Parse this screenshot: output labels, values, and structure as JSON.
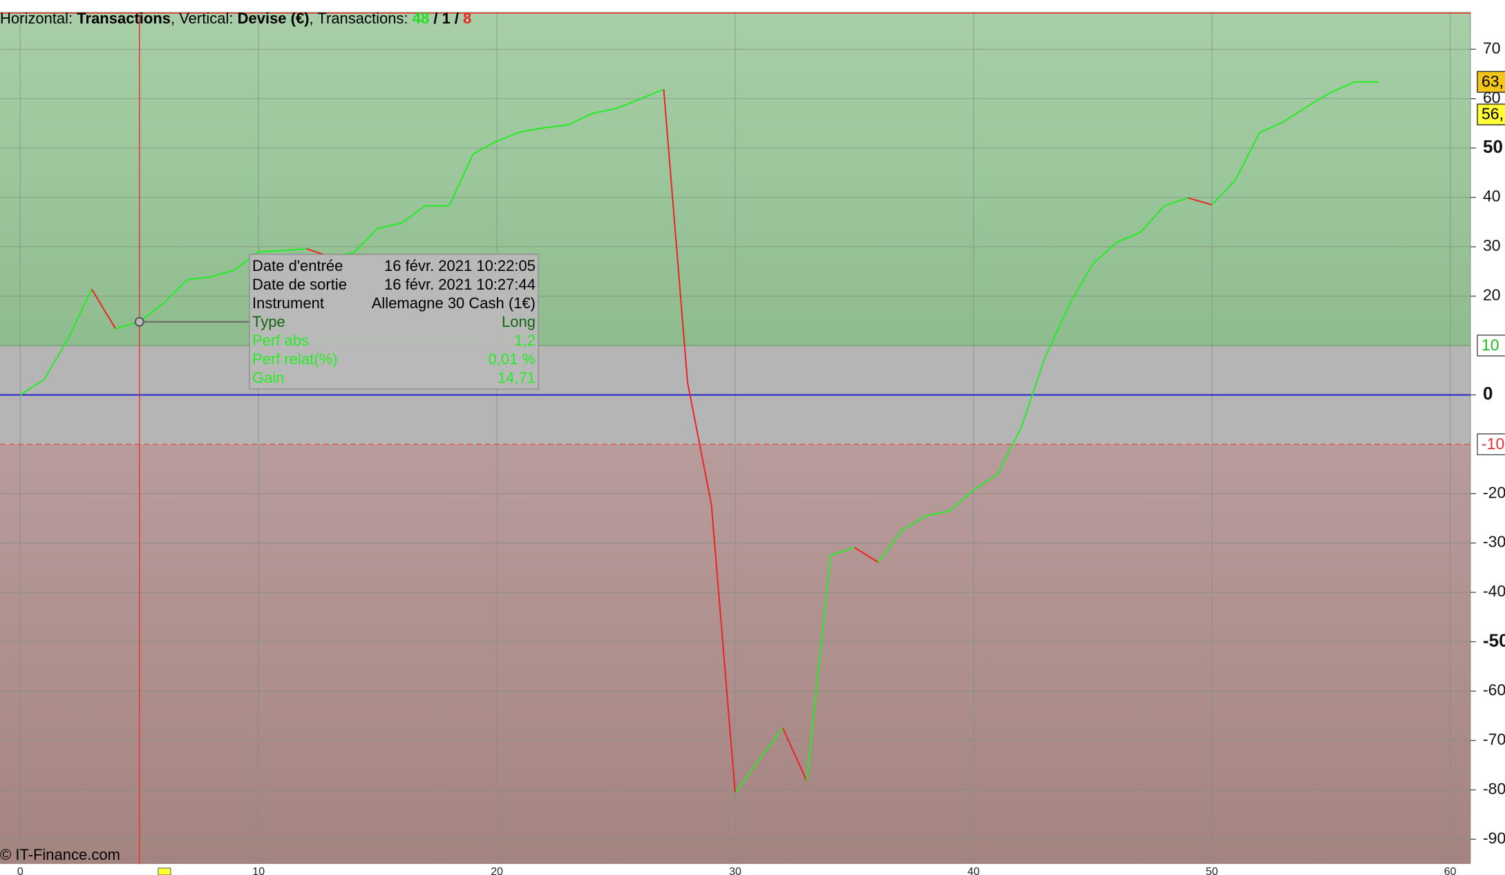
{
  "chart_data": {
    "type": "line",
    "header": [
      {
        "text": "Horizontal: "
      },
      {
        "text": "Transactions",
        "bold": true
      },
      {
        "text": ", Vertical: "
      },
      {
        "text": "Devise (€)",
        "bold": true
      },
      {
        "text": ", Transactions: "
      },
      {
        "value": 48,
        "bold": true,
        "color": "#22dd22"
      },
      {
        "text": " / ",
        "bold": true
      },
      {
        "value": 1,
        "bold": true
      },
      {
        "text": " / ",
        "bold": true
      },
      {
        "value": 8,
        "bold": true,
        "color": "#ee2222"
      }
    ],
    "x": [
      0,
      1,
      2,
      3,
      4,
      5,
      6,
      7,
      8,
      9,
      10,
      11,
      12,
      13,
      14,
      15,
      16,
      17,
      18,
      19,
      20,
      21,
      22,
      23,
      24,
      25,
      26,
      27,
      28,
      29,
      30,
      31,
      32,
      33,
      34,
      35,
      36,
      37,
      38,
      39,
      40,
      41,
      42,
      43,
      44,
      45,
      46,
      47,
      48,
      49,
      50,
      51,
      52,
      53,
      54,
      55,
      56,
      57
    ],
    "series": [
      {
        "name": "Gain",
        "up_color": "#22ee22",
        "down_color": "#ee2222",
        "values": [
          0,
          3.1,
          11.3,
          21.4,
          13.4,
          14.8,
          18.5,
          23.3,
          23.9,
          25.3,
          29.0,
          29.2,
          29.6,
          28.0,
          28.8,
          33.7,
          34.8,
          38.3,
          38.3,
          48.8,
          51.4,
          53.3,
          54.1,
          54.7,
          57.0,
          58.0,
          59.9,
          61.9,
          2.5,
          -22.2,
          -80.7,
          -73.9,
          -67.5,
          -78.2,
          -32.5,
          -30.9,
          -33.9,
          -27.4,
          -24.5,
          -23.5,
          -19.3,
          -16.1,
          -6.6,
          7.6,
          18.1,
          26.5,
          30.9,
          32.9,
          38.3,
          39.9,
          38.5,
          43.6,
          53.1,
          55.3,
          58.4,
          61.3,
          63.4,
          63.4
        ]
      }
    ],
    "xlim": [
      -0.85,
      60.85
    ],
    "ylim": [
      -95,
      77.6
    ],
    "xticks": [
      0,
      10,
      20,
      30,
      40,
      50,
      60
    ],
    "yticks": [
      70,
      60,
      50,
      40,
      30,
      20,
      0,
      -20,
      -30,
      -40,
      -50,
      -60,
      -70,
      -80,
      -90
    ],
    "grid": true,
    "zero_line_color": "#2222cc",
    "take_profit": {
      "value": 10,
      "label": "10",
      "color": "#22bb22"
    },
    "stop_loss": {
      "value": -10,
      "label": "-10",
      "color": "#dd3333"
    },
    "levels": [
      {
        "value": 63.4,
        "label": "63,",
        "color": "#f5c518"
      },
      {
        "value": 56.8,
        "label": "56,",
        "color": "#ffff33"
      }
    ],
    "selected_index": 5,
    "tooltip": [
      {
        "label": "Date d'entrée",
        "value": "16 févr. 2021 10:22:05",
        "color": "#000000"
      },
      {
        "label": "Date de sortie",
        "value": "16 févr. 2021 10:27:44",
        "color": "#000000"
      },
      {
        "label": "Instrument",
        "value": "Allemagne 30 Cash (1€)",
        "color": "#000000"
      },
      {
        "label": "Type",
        "value": "Long",
        "color": "#116611"
      },
      {
        "label": "Perf abs",
        "value": "1,2",
        "color": "#22ee22"
      },
      {
        "label": "Perf relat(%)",
        "value": "0,01 %",
        "color": "#22ee22"
      },
      {
        "label": "Gain",
        "value": "14,71",
        "color": "#22ee22"
      }
    ],
    "copyright": "© IT-Finance.com"
  }
}
